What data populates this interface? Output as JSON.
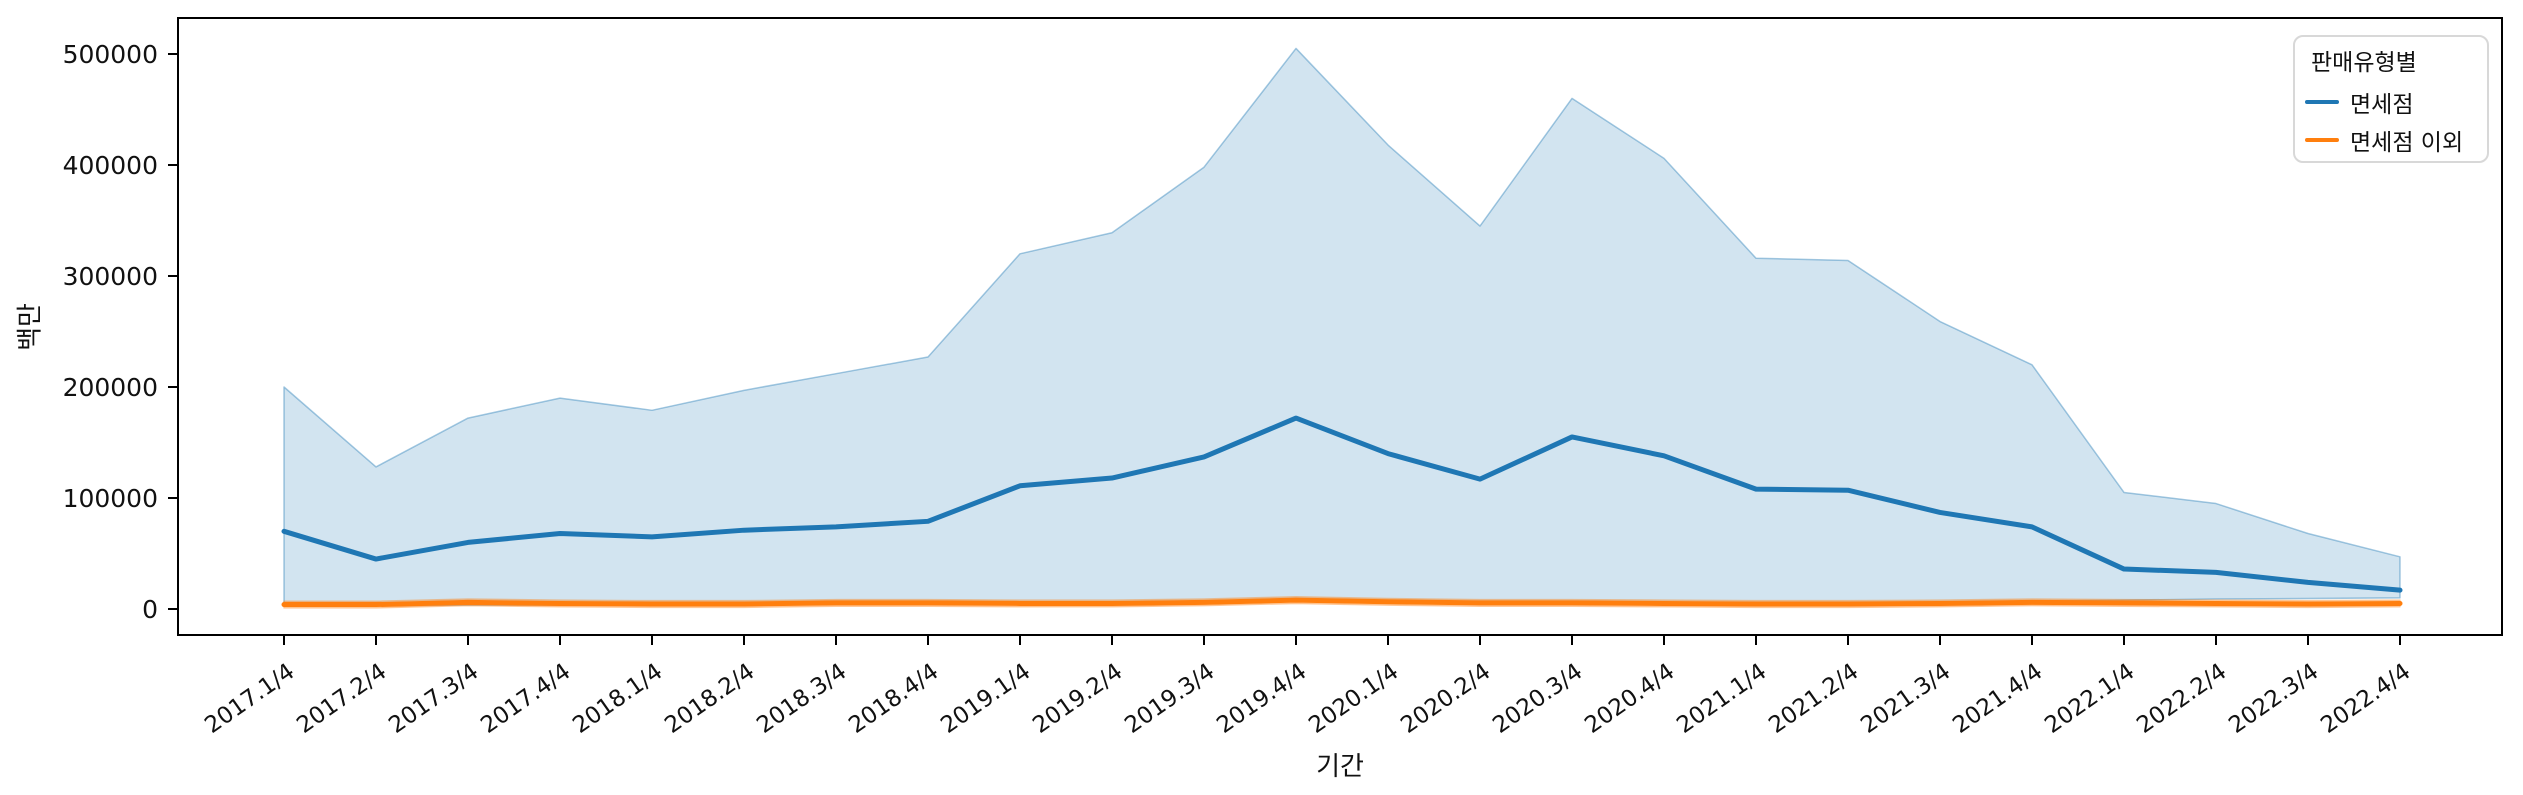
{
  "chart_data": {
    "type": "line",
    "title": "",
    "xlabel": "기간",
    "ylabel": "백만",
    "legend_title": "판매유형별",
    "legend_position": "upper right",
    "grid": false,
    "ylim": [
      0,
      532000
    ],
    "yticks": [
      0,
      100000,
      200000,
      300000,
      400000,
      500000
    ],
    "x_categories": [
      "2017.1/4",
      "2017.2/4",
      "2017.3/4",
      "2017.4/4",
      "2018.1/4",
      "2018.2/4",
      "2018.3/4",
      "2018.4/4",
      "2019.1/4",
      "2019.2/4",
      "2019.3/4",
      "2019.4/4",
      "2020.1/4",
      "2020.2/4",
      "2020.3/4",
      "2020.4/4",
      "2021.1/4",
      "2021.2/4",
      "2021.3/4",
      "2021.4/4",
      "2022.1/4",
      "2022.2/4",
      "2022.3/4",
      "2022.4/4"
    ],
    "series": [
      {
        "name": "면세점",
        "color": "#1f77b4",
        "values": [
          70000,
          45000,
          60000,
          68000,
          65000,
          71000,
          74000,
          79000,
          111000,
          118000,
          137000,
          172000,
          140000,
          117000,
          155000,
          138000,
          108000,
          107000,
          87000,
          74000,
          36000,
          33000,
          24000,
          17000
        ],
        "band_upper": [
          200000,
          128000,
          172000,
          190000,
          179000,
          197000,
          212000,
          227000,
          320000,
          339000,
          398000,
          505000,
          418000,
          345000,
          460000,
          406000,
          316000,
          314000,
          259000,
          220000,
          105000,
          95000,
          68000,
          47000
        ],
        "band_lower": [
          3000,
          3000,
          3500,
          3500,
          4000,
          4000,
          4500,
          4500,
          5000,
          5500,
          6000,
          8000,
          7000,
          6000,
          6500,
          6000,
          5500,
          5500,
          6000,
          7000,
          8000,
          9000,
          9500,
          10000
        ]
      },
      {
        "name": "면세점 이외",
        "color": "#ff7f0e",
        "values": [
          4000,
          4000,
          6000,
          5000,
          4500,
          4500,
          5500,
          5500,
          5000,
          5000,
          6000,
          8000,
          6500,
          5500,
          5500,
          5000,
          4500,
          4500,
          5000,
          6000,
          5500,
          5000,
          4500,
          5000
        ],
        "band_upper": [
          7000,
          7000,
          9000,
          8000,
          7500,
          7500,
          8500,
          8500,
          8000,
          8000,
          9000,
          11000,
          9500,
          8500,
          8500,
          8000,
          7500,
          7500,
          8000,
          9000,
          8500,
          8000,
          7500,
          8000
        ],
        "band_lower": [
          1000,
          1000,
          3000,
          2000,
          1500,
          1500,
          2500,
          2500,
          2000,
          2000,
          3000,
          5000,
          3500,
          2500,
          2500,
          2000,
          1500,
          1500,
          2000,
          3000,
          2500,
          2000,
          1500,
          2000
        ]
      }
    ]
  }
}
